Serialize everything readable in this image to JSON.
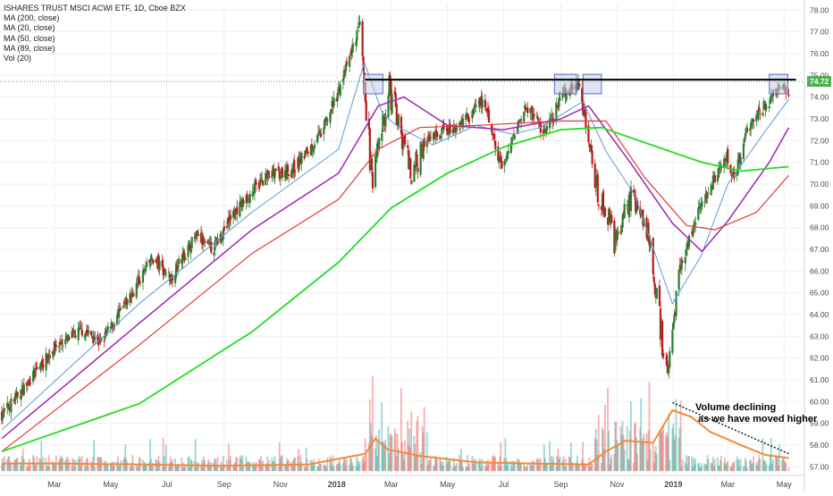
{
  "legend": {
    "title": "ISHARES TRUST MSCI ACWI ETF, 1D, Cboe BZX",
    "items": [
      "MA (200, close)",
      "MA (20, close)",
      "MA (50, close)",
      "MA (89, close)",
      "Vol (20)"
    ]
  },
  "last_price_label": "74.72",
  "annotation": {
    "line1": "Volume declining",
    "line2": "as we have moved higher"
  },
  "colors": {
    "up": "#26a69a",
    "down": "#ef5350",
    "candle_up": "#2e7d32",
    "candle_down": "#b71c1c",
    "ma200": "#22dd22",
    "ma89": "#e53935",
    "ma50": "#9c27b0",
    "ma20": "#5b9bd5",
    "vol_ma": "#f28b3c",
    "resistance": "#000000",
    "box_fill": "#c5cbe8",
    "box_stroke": "#3f51b5",
    "price_tag": "#4caf50"
  },
  "chart_data": {
    "type": "line",
    "x_tick_labels": [
      "Mar",
      "May",
      "Jul",
      "Sep",
      "Nov",
      "2018",
      "Mar",
      "May",
      "Jul",
      "Sep",
      "Nov",
      "2019",
      "Mar",
      "May"
    ],
    "y_tick_labels": [
      "57.00",
      "58.00",
      "59.00",
      "60.00",
      "61.00",
      "62.00",
      "63.00",
      "64.00",
      "65.00",
      "66.00",
      "67.00",
      "68.00",
      "69.00",
      "70.00",
      "71.00",
      "72.00",
      "73.00",
      "74.00",
      "75.00",
      "76.00",
      "77.00",
      "78.00"
    ],
    "ylim": [
      56.6,
      78.3
    ],
    "time_range": [
      "2017-01",
      "2019-05"
    ],
    "resistance_level": 74.8,
    "last_price": 74.72,
    "price_path": [
      [
        "2017-01-03",
        59.4
      ],
      [
        "2017-02-01",
        60.9
      ],
      [
        "2017-03-01",
        62.5
      ],
      [
        "2017-04-01",
        63.3
      ],
      [
        "2017-04-20",
        62.7
      ],
      [
        "2017-05-15",
        64.3
      ],
      [
        "2017-06-15",
        66.6
      ],
      [
        "2017-07-05",
        65.7
      ],
      [
        "2017-08-01",
        67.6
      ],
      [
        "2017-08-20",
        67.0
      ],
      [
        "2017-09-10",
        68.6
      ],
      [
        "2017-10-15",
        70.3
      ],
      [
        "2017-11-15",
        70.7
      ],
      [
        "2017-12-15",
        72.3
      ],
      [
        "2018-01-05",
        74.5
      ],
      [
        "2018-01-26",
        77.3
      ],
      [
        "2018-02-08",
        70.2
      ],
      [
        "2018-02-27",
        74.4
      ],
      [
        "2018-03-23",
        70.5
      ],
      [
        "2018-04-15",
        72.3
      ],
      [
        "2018-05-10",
        72.6
      ],
      [
        "2018-06-10",
        73.8
      ],
      [
        "2018-06-28",
        70.7
      ],
      [
        "2018-07-25",
        73.6
      ],
      [
        "2018-08-15",
        72.3
      ],
      [
        "2018-09-01",
        74.0
      ],
      [
        "2018-09-20",
        74.6
      ],
      [
        "2018-10-11",
        69.8
      ],
      [
        "2018-10-29",
        67.5
      ],
      [
        "2018-11-15",
        69.4
      ],
      [
        "2018-12-07",
        67.3
      ],
      [
        "2018-12-24",
        61.3
      ],
      [
        "2019-01-10",
        66.4
      ],
      [
        "2019-02-01",
        69.2
      ],
      [
        "2019-02-28",
        71.3
      ],
      [
        "2019-03-08",
        70.1
      ],
      [
        "2019-03-20",
        72.4
      ],
      [
        "2019-04-10",
        73.6
      ],
      [
        "2019-04-30",
        74.6
      ],
      [
        "2019-05-06",
        74.2
      ]
    ],
    "series": [
      {
        "name": "MA (20, close)",
        "points": [
          [
            "2017-01-03",
            58.7
          ],
          [
            "2017-06-01",
            64.5
          ],
          [
            "2017-10-01",
            68.7
          ],
          [
            "2018-01-03",
            71.6
          ],
          [
            "2018-01-31",
            75.6
          ],
          [
            "2018-02-20",
            73.2
          ],
          [
            "2018-03-10",
            72.6
          ],
          [
            "2018-04-15",
            71.8
          ],
          [
            "2018-06-01",
            72.7
          ],
          [
            "2018-07-10",
            72.3
          ],
          [
            "2018-08-10",
            72.6
          ],
          [
            "2018-09-25",
            73.8
          ],
          [
            "2018-10-20",
            71.5
          ],
          [
            "2018-11-20",
            69.5
          ],
          [
            "2018-12-31",
            64.5
          ],
          [
            "2019-01-31",
            66.7
          ],
          [
            "2019-03-01",
            70.0
          ],
          [
            "2019-04-10",
            72.4
          ],
          [
            "2019-05-06",
            73.9
          ]
        ]
      },
      {
        "name": "MA (50, close)",
        "points": [
          [
            "2017-01-03",
            58.3
          ],
          [
            "2017-06-01",
            63.6
          ],
          [
            "2017-10-01",
            67.9
          ],
          [
            "2018-01-03",
            70.5
          ],
          [
            "2018-02-15",
            73.6
          ],
          [
            "2018-03-15",
            74.0
          ],
          [
            "2018-05-01",
            72.7
          ],
          [
            "2018-07-01",
            72.5
          ],
          [
            "2018-09-01",
            73.0
          ],
          [
            "2018-10-01",
            73.6
          ],
          [
            "2018-11-15",
            71.0
          ],
          [
            "2018-12-31",
            68.2
          ],
          [
            "2019-02-01",
            66.9
          ],
          [
            "2019-03-01",
            68.3
          ],
          [
            "2019-04-15",
            71.0
          ],
          [
            "2019-05-06",
            72.6
          ]
        ]
      },
      {
        "name": "MA (89, close)",
        "points": [
          [
            "2017-01-03",
            57.7
          ],
          [
            "2017-06-01",
            62.6
          ],
          [
            "2017-10-01",
            66.8
          ],
          [
            "2018-01-03",
            69.3
          ],
          [
            "2018-02-15",
            71.6
          ],
          [
            "2018-04-01",
            72.6
          ],
          [
            "2018-06-01",
            72.7
          ],
          [
            "2018-09-01",
            72.9
          ],
          [
            "2018-10-20",
            72.9
          ],
          [
            "2018-12-01",
            70.3
          ],
          [
            "2019-01-15",
            68.1
          ],
          [
            "2019-02-15",
            67.9
          ],
          [
            "2019-04-01",
            68.7
          ],
          [
            "2019-05-06",
            70.4
          ]
        ]
      },
      {
        "name": "MA (200, close)",
        "points": [
          [
            "2017-01-03",
            57.7
          ],
          [
            "2017-06-01",
            59.9
          ],
          [
            "2017-10-01",
            63.2
          ],
          [
            "2018-01-03",
            66.4
          ],
          [
            "2018-03-01",
            68.9
          ],
          [
            "2018-05-01",
            70.5
          ],
          [
            "2018-07-01",
            71.7
          ],
          [
            "2018-09-01",
            72.5
          ],
          [
            "2018-10-15",
            72.6
          ],
          [
            "2018-12-15",
            71.7
          ],
          [
            "2019-02-01",
            71.0
          ],
          [
            "2019-03-15",
            70.6
          ],
          [
            "2019-05-06",
            70.8
          ]
        ]
      }
    ],
    "volume_ma_path": [
      [
        "2017-01-03",
        57.15
      ],
      [
        "2017-03-01",
        57.15
      ],
      [
        "2017-06-01",
        57.1
      ],
      [
        "2017-09-01",
        57.05
      ],
      [
        "2017-12-01",
        57.1
      ],
      [
        "2018-02-01",
        57.6
      ],
      [
        "2018-02-12",
        58.3
      ],
      [
        "2018-02-25",
        57.8
      ],
      [
        "2018-04-01",
        57.5
      ],
      [
        "2018-06-01",
        57.2
      ],
      [
        "2018-08-01",
        57.15
      ],
      [
        "2018-10-01",
        57.1
      ],
      [
        "2018-10-20",
        57.7
      ],
      [
        "2018-11-10",
        58.2
      ],
      [
        "2018-12-10",
        58.1
      ],
      [
        "2018-12-31",
        59.6
      ],
      [
        "2019-01-20",
        59.3
      ],
      [
        "2019-02-10",
        58.6
      ],
      [
        "2019-03-15",
        58.0
      ],
      [
        "2019-04-10",
        57.55
      ],
      [
        "2019-05-06",
        57.4
      ]
    ],
    "highlight_boxes": [
      {
        "start": "2018-01-30",
        "end": "2018-02-20"
      },
      {
        "start": "2018-08-25",
        "end": "2018-09-18"
      },
      {
        "start": "2018-09-25",
        "end": "2018-10-15"
      },
      {
        "start": "2019-04-15",
        "end": "2019-05-05"
      }
    ],
    "grid": true,
    "legend_position": "top-left"
  }
}
